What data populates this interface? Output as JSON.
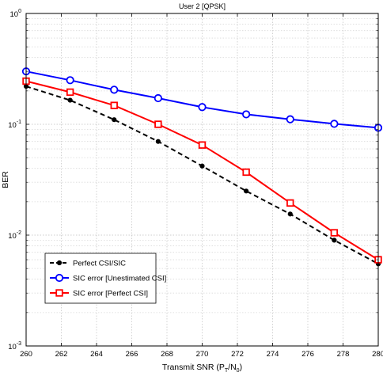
{
  "chart_data": {
    "type": "line",
    "title": "User 2 [QPSK]",
    "xlabel_main": "Transmit SNR (P",
    "xlabel_sub1": "T",
    "xlabel_mid": "/N",
    "xlabel_sub2": "0",
    "xlabel_end": ")",
    "ylabel": "BER",
    "xlim": [
      260,
      280
    ],
    "ylim": [
      0.001,
      1
    ],
    "yscale": "log",
    "grid": true,
    "legend_position": "lower-left",
    "x_ticks": [
      260,
      262,
      264,
      266,
      268,
      270,
      272,
      274,
      276,
      278,
      280
    ],
    "y_ticks": [
      {
        "base": "10",
        "exp": "0",
        "value": 1
      },
      {
        "base": "10",
        "exp": "-1",
        "value": 0.1
      },
      {
        "base": "10",
        "exp": "-2",
        "value": 0.01
      },
      {
        "base": "10",
        "exp": "-3",
        "value": 0.001
      }
    ],
    "series": [
      {
        "name": "Perfect CSI/SIC",
        "color": "#000000",
        "line_style": "dashed",
        "marker": "dot",
        "x": [
          260,
          262.5,
          265,
          267.5,
          270,
          272.5,
          275,
          277.5,
          280
        ],
        "y": [
          0.22,
          0.165,
          0.11,
          0.07,
          0.042,
          0.025,
          0.0155,
          0.009,
          0.0055
        ]
      },
      {
        "name": "SIC error [Unestimated CSI]",
        "color": "#0000ff",
        "line_style": "solid",
        "marker": "circle",
        "x": [
          260,
          262.5,
          265,
          267.5,
          270,
          272.5,
          275,
          277.5,
          280
        ],
        "y": [
          0.3,
          0.25,
          0.205,
          0.172,
          0.143,
          0.123,
          0.111,
          0.101,
          0.093
        ]
      },
      {
        "name": "SIC error [Perfect CSI]",
        "color": "#ff0000",
        "line_style": "solid",
        "marker": "square",
        "x": [
          260,
          262.5,
          265,
          267.5,
          270,
          272.5,
          275,
          277.5,
          280
        ],
        "y": [
          0.245,
          0.195,
          0.148,
          0.1,
          0.065,
          0.037,
          0.0195,
          0.0105,
          0.006
        ]
      }
    ]
  }
}
